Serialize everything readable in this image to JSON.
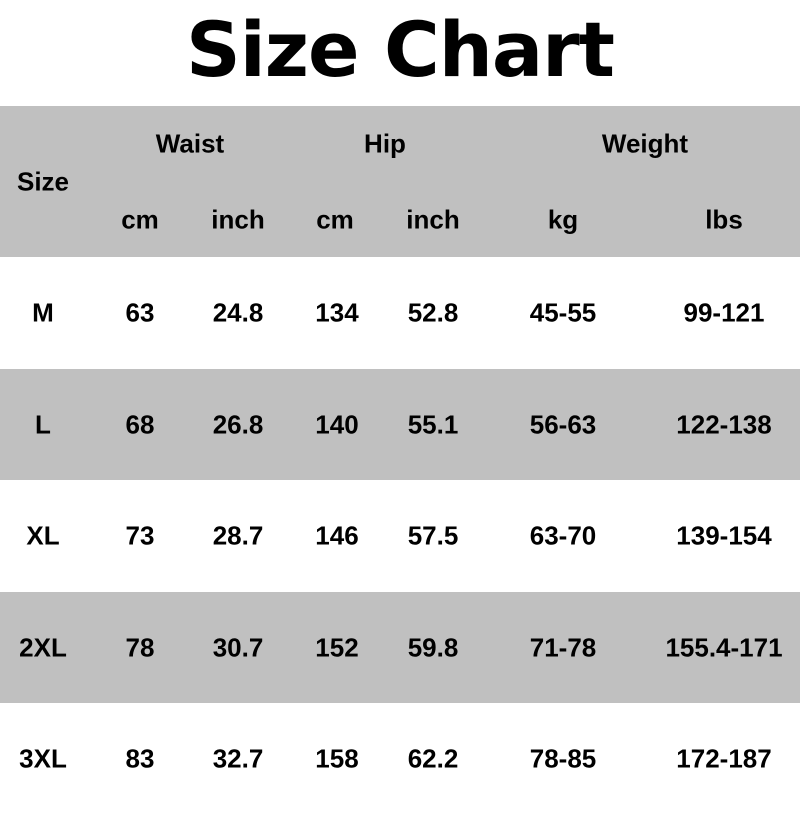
{
  "title": "Size Chart",
  "header": {
    "size": "Size",
    "groups": [
      {
        "label": "Waist",
        "units": [
          "cm",
          "inch"
        ]
      },
      {
        "label": "Hip",
        "units": [
          "cm",
          "inch"
        ]
      },
      {
        "label": "Weight",
        "units": [
          "kg",
          "lbs"
        ]
      }
    ]
  },
  "colors": {
    "band": "#c0c0c0",
    "background": "#ffffff",
    "text": "#000000"
  },
  "rows": [
    [
      "M",
      "63",
      "24.8",
      "134",
      "52.8",
      "45-55",
      "99-121"
    ],
    [
      "L",
      "68",
      "26.8",
      "140",
      "55.1",
      "56-63",
      "122-138"
    ],
    [
      "XL",
      "73",
      "28.7",
      "146",
      "57.5",
      "63-70",
      "139-154"
    ],
    [
      "2XL",
      "78",
      "30.7",
      "152",
      "59.8",
      "71-78",
      "155.4-171"
    ],
    [
      "3XL",
      "83",
      "32.7",
      "158",
      "62.2",
      "78-85",
      "172-187"
    ]
  ]
}
